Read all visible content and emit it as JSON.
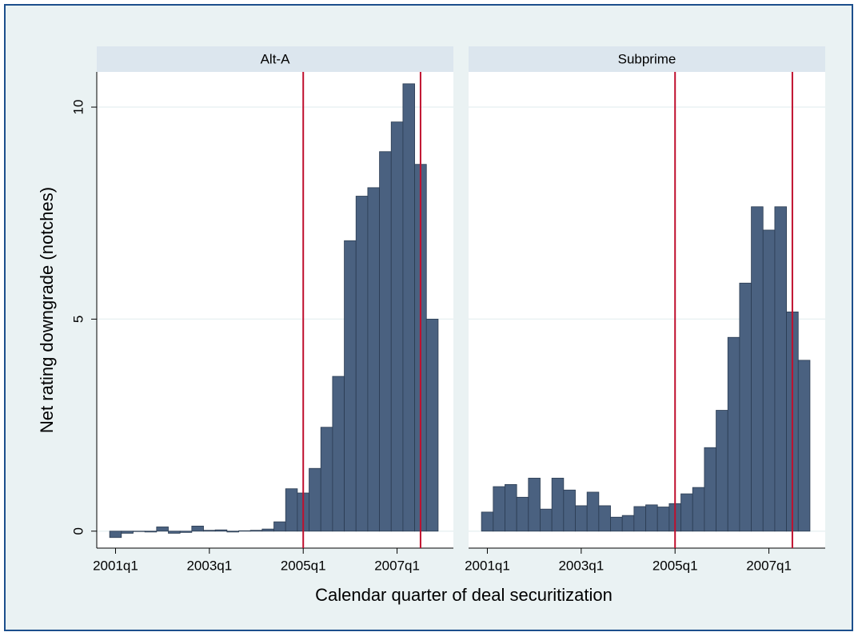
{
  "chart_data": {
    "type": "bar",
    "y_label": "Net rating downgrade (notches)",
    "x_label": "Calendar quarter of deal securitization",
    "x": [
      164,
      165,
      166,
      167,
      168,
      169,
      170,
      171,
      172,
      173,
      174,
      175,
      176,
      177,
      178,
      179,
      180,
      181,
      182,
      183,
      184,
      185,
      186,
      187,
      188,
      189,
      190,
      191
    ],
    "xlim": [
      162.4,
      192.8
    ],
    "xticks": [
      {
        "value": 164,
        "label": "2001q1"
      },
      {
        "value": 172,
        "label": "2003q1"
      },
      {
        "value": 180,
        "label": "2005q1"
      },
      {
        "value": 188,
        "label": "2007q1"
      }
    ],
    "ylim": [
      -0.4,
      10.83
    ],
    "yticks": [
      0,
      5,
      10
    ],
    "grid": true,
    "color": "#4a6180",
    "vlines": [
      180,
      190
    ],
    "vline_color": "#c0102e",
    "panels": [
      {
        "title": "Alt-A",
        "values": [
          -0.15,
          -0.05,
          0,
          -0.02,
          0.1,
          -0.05,
          -0.03,
          0.12,
          0.02,
          0.03,
          -0.02,
          0.01,
          0.02,
          0.05,
          0.22,
          1.0,
          0.9,
          1.48,
          2.45,
          3.65,
          6.85,
          7.9,
          8.1,
          8.95,
          9.65,
          10.55,
          8.65,
          5.0
        ]
      },
      {
        "title": "Subprime",
        "values": [
          0.45,
          1.05,
          1.1,
          0.8,
          1.25,
          0.52,
          1.25,
          0.97,
          0.6,
          0.92,
          0.6,
          0.33,
          0.37,
          0.58,
          0.62,
          0.57,
          0.65,
          0.88,
          1.03,
          1.97,
          2.85,
          4.57,
          5.85,
          7.65,
          7.1,
          7.65,
          5.17,
          4.03
        ]
      }
    ]
  }
}
